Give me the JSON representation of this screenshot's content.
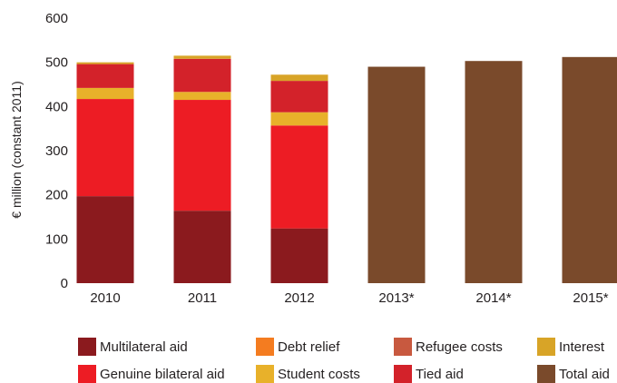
{
  "chart_data": {
    "type": "bar",
    "stacked": true,
    "categories": [
      "2010",
      "2011",
      "2012",
      "2013*",
      "2014*",
      "2015*"
    ],
    "ylabel": "€ million (constant 2011)",
    "ylim": [
      0,
      600
    ],
    "yticks": [
      "0",
      "100",
      "200",
      "300",
      "400",
      "500",
      "600"
    ],
    "grid": false,
    "legend_position": "bottom",
    "series": [
      {
        "name": "Multilateral aid",
        "color": "#8b1a1e",
        "values": [
          197,
          164,
          124,
          0,
          0,
          0
        ]
      },
      {
        "name": "Genuine bilateral aid",
        "color": "#ed1c24",
        "values": [
          220,
          251,
          233,
          0,
          0,
          0
        ]
      },
      {
        "name": "Debt relief",
        "color": "#f47c20",
        "values": [
          0,
          0,
          0,
          0,
          0,
          0
        ]
      },
      {
        "name": "Student costs",
        "color": "#e8b12a",
        "values": [
          25,
          18,
          30,
          0,
          0,
          0
        ]
      },
      {
        "name": "Refugee costs",
        "color": "#c8593f",
        "values": [
          0,
          0,
          0,
          0,
          0,
          0
        ]
      },
      {
        "name": "Tied aid",
        "color": "#d3222a",
        "values": [
          54,
          75,
          71,
          0,
          0,
          0
        ]
      },
      {
        "name": "Interest",
        "color": "#d8a427",
        "values": [
          4,
          7,
          14,
          0,
          0,
          0
        ]
      },
      {
        "name": "Total aid",
        "color": "#7a4a2b",
        "values": [
          0,
          0,
          0,
          490,
          503,
          512
        ]
      }
    ]
  },
  "legend": [
    {
      "label": "Multilateral aid",
      "color": "#8b1a1e"
    },
    {
      "label": "Debt relief",
      "color": "#f47c20"
    },
    {
      "label": "Refugee costs",
      "color": "#c8593f"
    },
    {
      "label": "Interest",
      "color": "#d8a427"
    },
    {
      "label": "Genuine bilateral aid",
      "color": "#ed1c24"
    },
    {
      "label": "Student costs",
      "color": "#e8b12a"
    },
    {
      "label": "Tied aid",
      "color": "#d3222a"
    },
    {
      "label": "Total aid",
      "color": "#7a4a2b"
    }
  ]
}
